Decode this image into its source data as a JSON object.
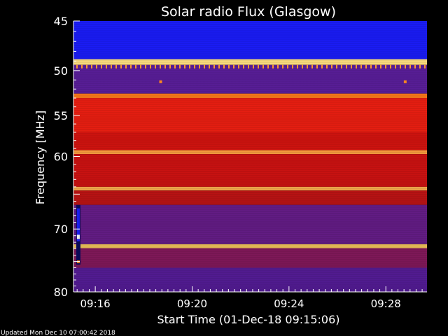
{
  "chart_data": {
    "type": "heatmap",
    "title": "Solar radio Flux (Glasgow)",
    "xlabel": "Start Time (01-Dec-18 09:15:06)",
    "ylabel": "Frequency [MHz]",
    "footer": "Updated Mon Dec 10 07:00:42 2018",
    "x_ticks": [
      {
        "label": "09:16",
        "minutes": 16
      },
      {
        "label": "09:20",
        "minutes": 20
      },
      {
        "label": "09:24",
        "minutes": 24
      },
      {
        "label": "09:28",
        "minutes": 28
      }
    ],
    "x_range_minutes": [
      15.1,
      29.7
    ],
    "y_ticks": [
      {
        "label": "45",
        "value": 45
      },
      {
        "label": "50",
        "value": 50
      },
      {
        "label": "55",
        "value": 55
      },
      {
        "label": "60",
        "value": 60
      },
      {
        "label": "70",
        "value": 70
      },
      {
        "label": "80",
        "value": 80
      }
    ],
    "y_range_mhz": [
      80,
      45
    ],
    "y_scale": "log",
    "colormap": "blue-red-yellow-white",
    "bands": [
      {
        "from": 45.0,
        "to": 48.8,
        "color": "#1a1cf6"
      },
      {
        "from": 48.8,
        "to": 49.4,
        "color": "#ffe080"
      },
      {
        "from": 49.4,
        "to": 52.5,
        "color": "#5a1e9a"
      },
      {
        "from": 52.5,
        "to": 53.0,
        "color": "#ff7a1a"
      },
      {
        "from": 53.0,
        "to": 57.0,
        "color": "#ee1f12"
      },
      {
        "from": 57.0,
        "to": 59.2,
        "color": "#d81410"
      },
      {
        "from": 59.2,
        "to": 59.7,
        "color": "#ffa040"
      },
      {
        "from": 59.7,
        "to": 64.0,
        "color": "#d41312"
      },
      {
        "from": 64.0,
        "to": 64.5,
        "color": "#ffb050"
      },
      {
        "from": 64.5,
        "to": 66.5,
        "color": "#c41414"
      },
      {
        "from": 66.5,
        "to": 72.3,
        "color": "#6a1e8e"
      },
      {
        "from": 72.3,
        "to": 72.9,
        "color": "#ffd060"
      },
      {
        "from": 72.9,
        "to": 76.0,
        "color": "#8a1a60"
      },
      {
        "from": 76.0,
        "to": 80.0,
        "color": "#5a1ea0"
      }
    ],
    "spots": [
      {
        "minutes": 18.7,
        "mhz": 51.2,
        "color": "#ff8a20"
      },
      {
        "minutes": 28.8,
        "mhz": 51.2,
        "color": "#ff8a20"
      }
    ],
    "burst": {
      "minutes": 15.3,
      "mhz_from": 66.5,
      "mhz_to": 75.5
    }
  }
}
